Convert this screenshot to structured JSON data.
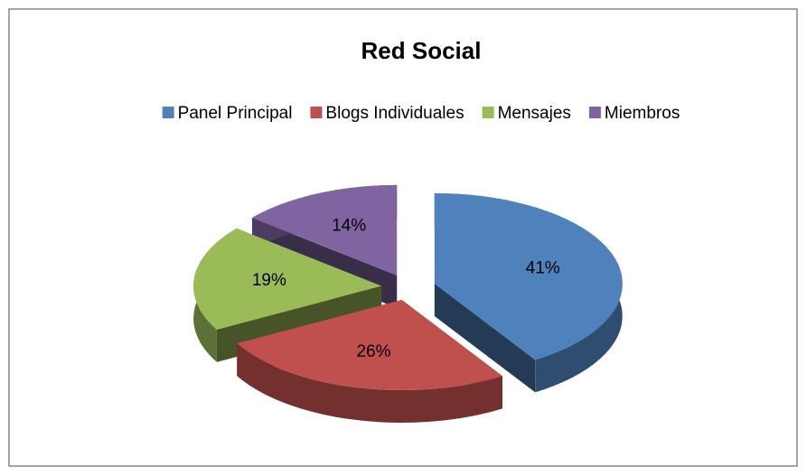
{
  "chart_data": {
    "type": "pie",
    "title": "Red Social",
    "categories": [
      "Panel Principal",
      "Blogs Individuales",
      "Mensajes",
      "Miembros"
    ],
    "values": [
      41,
      26,
      19,
      14
    ],
    "value_labels": [
      "41%",
      "26%",
      "19%",
      "14%"
    ],
    "colors": [
      "#4f81bd",
      "#c0504d",
      "#9bbb59",
      "#8064a2"
    ],
    "legend": "top"
  }
}
